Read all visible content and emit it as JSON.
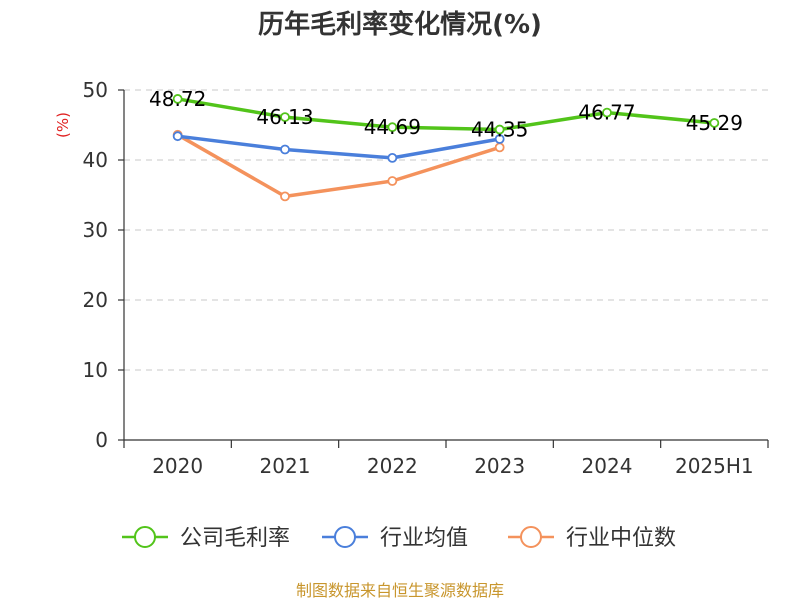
{
  "chart_data": {
    "type": "line",
    "title": "历年毛利率变化情况(%)",
    "ylabel": "(%)",
    "xlabel": "",
    "categories": [
      "2020",
      "2021",
      "2022",
      "2023",
      "2024",
      "2025H1"
    ],
    "ylim": [
      0,
      50
    ],
    "yticks": [
      0,
      10,
      20,
      30,
      40,
      50
    ],
    "grid": true,
    "legend_position": "bottom",
    "series": [
      {
        "name": "公司毛利率",
        "color": "#52c41a",
        "values": [
          48.72,
          46.13,
          44.69,
          44.35,
          46.77,
          45.29
        ],
        "labels": [
          "48.72",
          "46.13",
          "44.69",
          "44.35",
          "46.77",
          "45.29"
        ]
      },
      {
        "name": "行业均值",
        "color": "#4a7fdb",
        "values": [
          43.4,
          41.5,
          40.3,
          43.0,
          null,
          null
        ]
      },
      {
        "name": "行业中位数",
        "color": "#f4925c",
        "values": [
          43.6,
          34.8,
          37.0,
          41.8,
          null,
          null
        ]
      }
    ]
  },
  "source": "制图数据来自恒生聚源数据库"
}
